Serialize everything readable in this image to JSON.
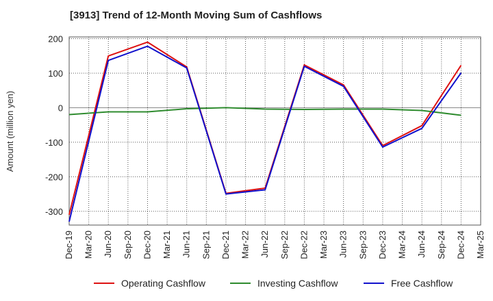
{
  "chart_data": {
    "type": "line",
    "title": "[3913]  Trend of 12-Month Moving Sum of Cashflows",
    "xlabel": "",
    "ylabel": "Amount (million yen)",
    "ylim": [
      -340,
      205
    ],
    "yticks": [
      200,
      100,
      0,
      -100,
      -200,
      -300
    ],
    "x": [
      "Dec-19",
      "Mar-20",
      "Jun-20",
      "Sep-20",
      "Dec-20",
      "Mar-21",
      "Jun-21",
      "Sep-21",
      "Dec-21",
      "Mar-22",
      "Jun-22",
      "Sep-22",
      "Dec-22",
      "Mar-23",
      "Jun-23",
      "Sep-23",
      "Dec-23",
      "Mar-24",
      "Jun-24",
      "Sep-24",
      "Dec-24",
      "Mar-25"
    ],
    "grid": true,
    "legend_position": "bottom",
    "series": [
      {
        "name": "Operating Cashflow",
        "color": "#dd1111",
        "values": [
          -310,
          null,
          150,
          null,
          190,
          null,
          118,
          null,
          -248,
          null,
          -233,
          null,
          124,
          null,
          66,
          null,
          -110,
          null,
          -52,
          null,
          123,
          null
        ]
      },
      {
        "name": "Investing Cashflow",
        "color": "#2e8b2e",
        "values": [
          -20,
          null,
          -12,
          null,
          -12,
          null,
          -3,
          null,
          0,
          null,
          -4,
          null,
          -5,
          null,
          -4,
          null,
          -4,
          null,
          -8,
          null,
          -22,
          null
        ]
      },
      {
        "name": "Free Cashflow",
        "color": "#1111cc",
        "values": [
          -330,
          null,
          137,
          null,
          178,
          null,
          115,
          null,
          -250,
          null,
          -238,
          null,
          120,
          null,
          62,
          null,
          -114,
          null,
          -60,
          null,
          101,
          null
        ]
      }
    ]
  }
}
